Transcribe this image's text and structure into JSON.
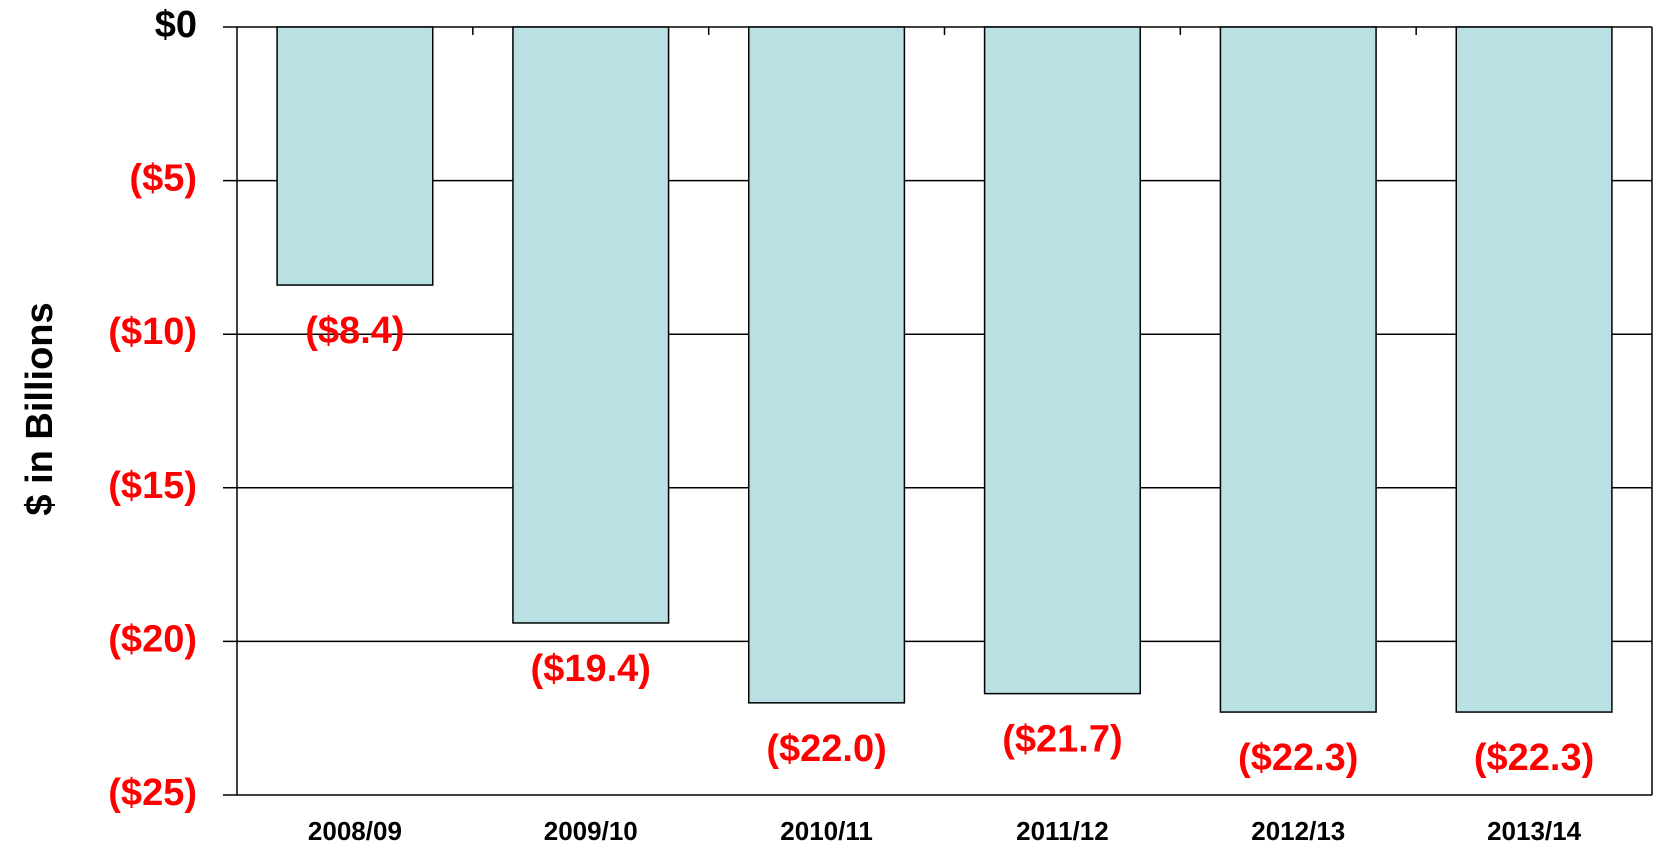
{
  "chart_data": {
    "type": "bar",
    "y_label": "$ in Billions",
    "categories": [
      "2008/09",
      "2009/10",
      "2010/11",
      "2011/12",
      "2012/13",
      "2013/14"
    ],
    "values": [
      -8.4,
      -19.4,
      -22.0,
      -21.7,
      -22.3,
      -22.3
    ],
    "value_labels": [
      "($8.4)",
      "($19.4)",
      "($22.0)",
      "($21.7)",
      "($22.3)",
      "($22.3)"
    ],
    "color": "#b9e0e3",
    "value_label_color": "#ff0000",
    "ylim": [
      -25,
      0
    ],
    "yticks": [
      {
        "value": 0,
        "label": "$0"
      },
      {
        "value": -5,
        "label": "($5)"
      },
      {
        "value": -10,
        "label": "($10)"
      },
      {
        "value": -15,
        "label": "($15)"
      },
      {
        "value": -20,
        "label": "($20)"
      },
      {
        "value": -25,
        "label": "($25)"
      }
    ],
    "ytick_colors": [
      "#000000",
      "#ff0000",
      "#ff0000",
      "#ff0000",
      "#ff0000",
      "#ff0000"
    ],
    "grid": true
  }
}
